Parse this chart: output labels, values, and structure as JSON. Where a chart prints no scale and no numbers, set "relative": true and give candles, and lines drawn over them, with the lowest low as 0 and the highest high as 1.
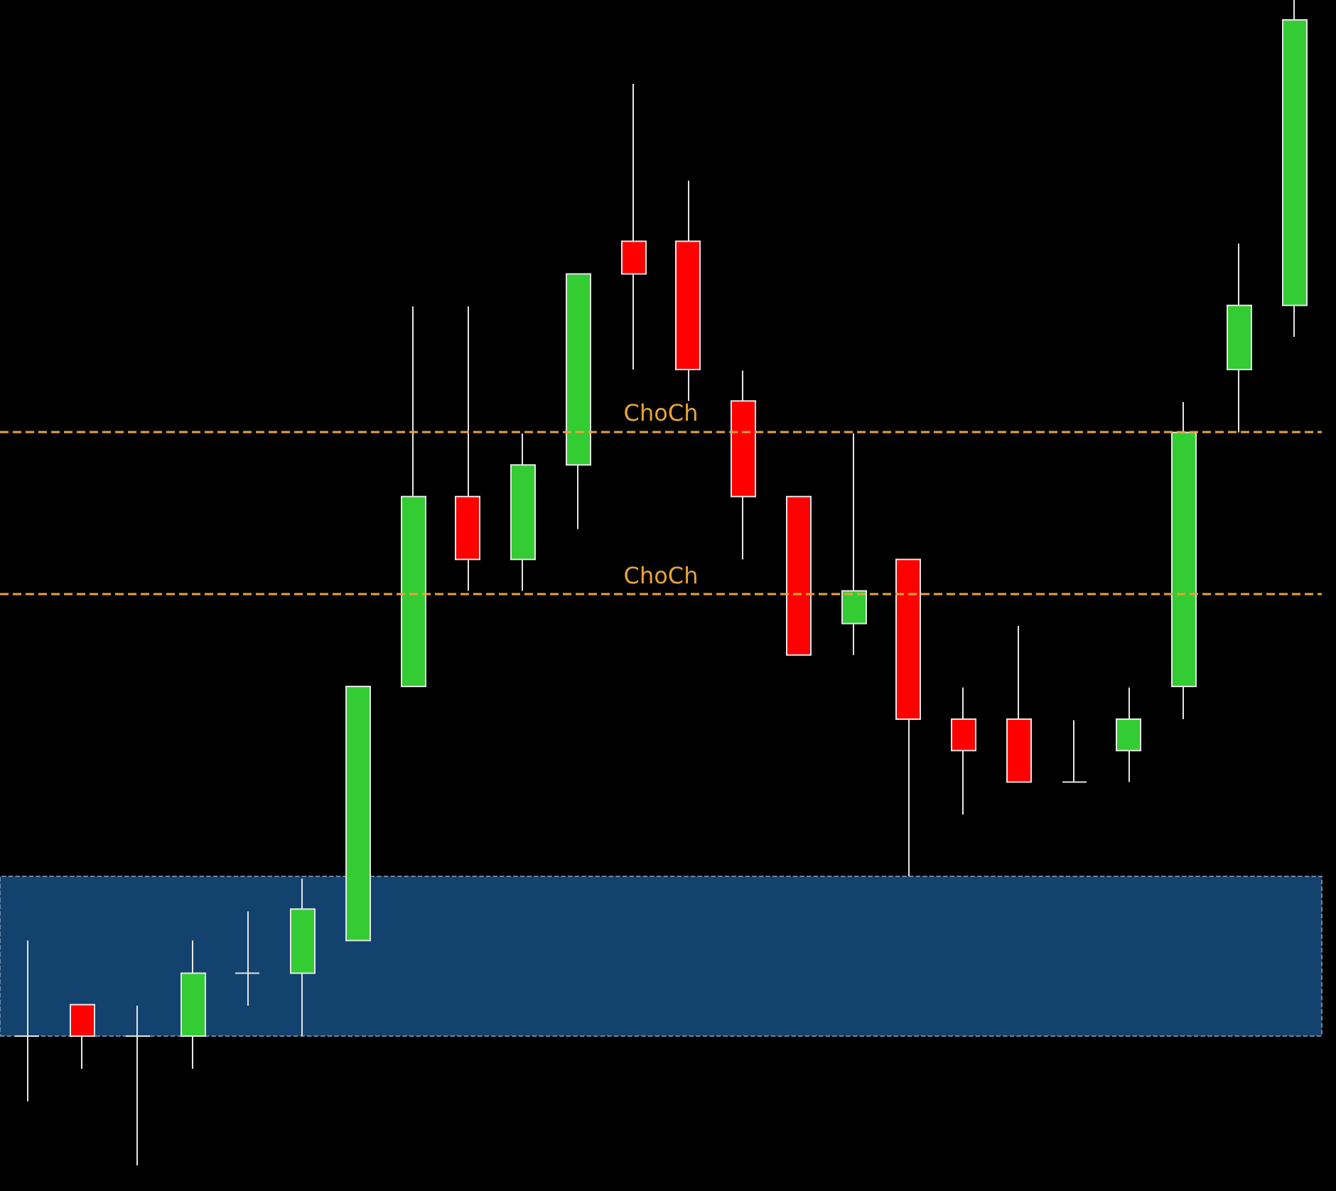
{
  "chart_data": {
    "type": "candlestick",
    "relative": true,
    "categories": [
      null,
      null,
      null,
      null,
      null,
      null,
      null,
      null,
      null,
      null,
      null,
      null,
      null,
      null,
      null,
      null,
      null,
      null,
      null,
      null,
      null,
      null,
      null,
      null
    ],
    "ohlc": [
      [
        0.111,
        0.193,
        0.055,
        0.111
      ],
      [
        0.138,
        0.138,
        0.083,
        0.111
      ],
      [
        0.111,
        0.137,
        0,
        0.111
      ],
      [
        0.111,
        0.193,
        0.083,
        0.165
      ],
      [
        0.165,
        0.218,
        0.137,
        0.165
      ],
      [
        0.165,
        0.246,
        0.111,
        0.22
      ],
      [
        0.193,
        0.411,
        0.193,
        0.411
      ],
      [
        0.411,
        0.737,
        0.411,
        0.574
      ],
      [
        0.574,
        0.737,
        0.493,
        0.52
      ],
      [
        0.52,
        0.628,
        0.493,
        0.601
      ],
      [
        0.601,
        0.765,
        0.546,
        0.765
      ],
      [
        0.793,
        0.928,
        0.683,
        0.765
      ],
      [
        0.793,
        0.845,
        0.656,
        0.683
      ],
      [
        0.656,
        0.682,
        0.52,
        0.574
      ],
      [
        0.574,
        0.574,
        0.438,
        0.438
      ],
      [
        0.465,
        0.628,
        0.438,
        0.493
      ],
      [
        0.52,
        0.52,
        0.248,
        0.383
      ],
      [
        0.383,
        0.41,
        0.301,
        0.356
      ],
      [
        0.383,
        0.463,
        0.329,
        0.329
      ],
      [
        0.329,
        0.382,
        0.329,
        0.329
      ],
      [
        0.356,
        0.41,
        0.329,
        0.383
      ],
      [
        0.411,
        0.655,
        0.383,
        0.629
      ],
      [
        0.683,
        0.791,
        0.629,
        0.738
      ],
      [
        0.738,
        1,
        0.711,
        0.983
      ]
    ],
    "colors": [
      "#e6e6e6",
      "#ff0000",
      "#e6e6e6",
      "#33cc33",
      "#e6e6e6",
      "#33cc33",
      "#33cc33",
      "#33cc33",
      "#ff0000",
      "#33cc33",
      "#33cc33",
      "#ff0000",
      "#ff0000",
      "#ff0000",
      "#ff0000",
      "#33cc33",
      "#ff0000",
      "#ff0000",
      "#ff0000",
      "#e6e6e6",
      "#33cc33",
      "#33cc33",
      "#33cc33",
      "#33cc33"
    ],
    "ref_lines": [
      {
        "axis": "y",
        "value": 0.493,
        "label": "ChoCh",
        "color": "#e8a33c",
        "line_style": "dashed"
      },
      {
        "axis": "y",
        "value": 0.629,
        "label": "ChoCh",
        "color": "#e8a33c",
        "line_style": "dashed"
      }
    ],
    "bands": [
      {
        "axis": "y",
        "from": 0.111,
        "to": 0.248,
        "color": "#13426f"
      }
    ]
  }
}
